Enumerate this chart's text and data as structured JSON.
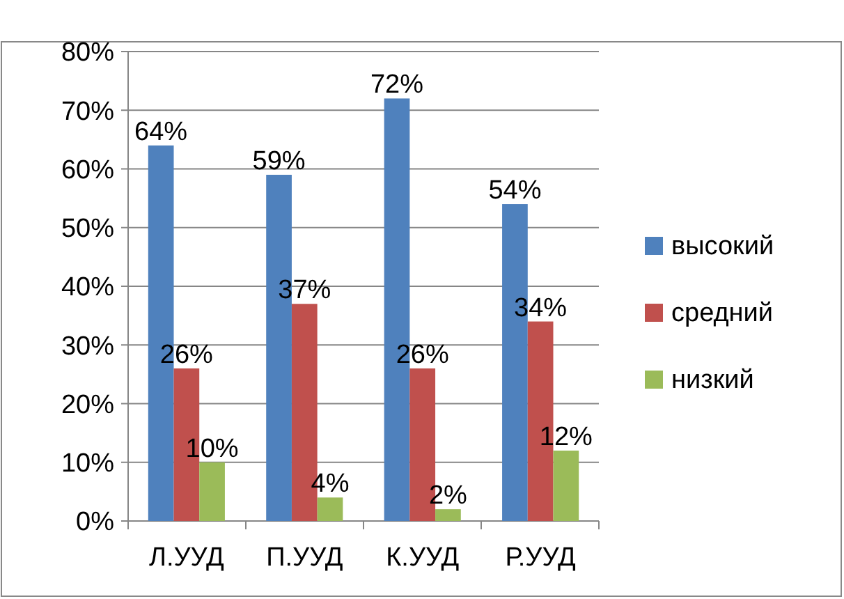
{
  "chart_data": {
    "type": "bar",
    "categories": [
      "Л.УУД",
      "П.УУД",
      "К.УУД",
      "Р.УУД"
    ],
    "series": [
      {
        "name": "высокий",
        "color": "#4f81bd",
        "values": [
          64,
          59,
          72,
          54
        ]
      },
      {
        "name": "средний",
        "color": "#c0504d",
        "values": [
          26,
          37,
          26,
          34
        ]
      },
      {
        "name": "низкий",
        "color": "#9bbb59",
        "values": [
          10,
          4,
          2,
          12
        ]
      }
    ],
    "ylim": [
      0,
      80
    ],
    "yticks": [
      {
        "value": 0,
        "label": "0%"
      },
      {
        "value": 10,
        "label": "10%"
      },
      {
        "value": 20,
        "label": "20%"
      },
      {
        "value": 30,
        "label": "30%"
      },
      {
        "value": 40,
        "label": "40%"
      },
      {
        "value": 50,
        "label": "50%"
      },
      {
        "value": 60,
        "label": "60%"
      },
      {
        "value": 70,
        "label": "70%"
      },
      {
        "value": 80,
        "label": "80%"
      }
    ],
    "grid": "y",
    "legend": "right",
    "value_labels": [
      [
        "64%",
        "59%",
        "72%",
        "54%"
      ],
      [
        "26%",
        "37%",
        "26%",
        "34%"
      ],
      [
        "10%",
        "4%",
        "2%",
        "12%"
      ]
    ]
  }
}
